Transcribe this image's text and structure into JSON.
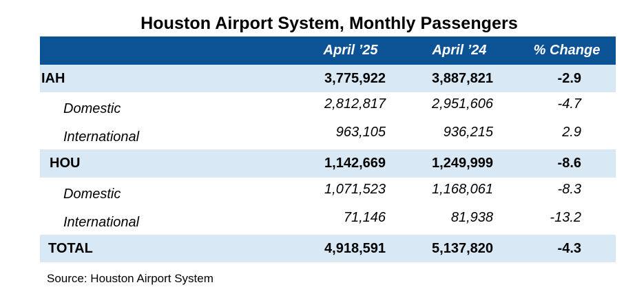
{
  "chart_data": {
    "type": "table",
    "title": "Houston Airport System, Monthly Passengers",
    "columns": [
      "",
      "April ’25",
      "April ’24",
      "% Change"
    ],
    "rows": [
      {
        "label": "IAH",
        "kind": "group",
        "april_25": "3,775,922",
        "april_24": "3,887,821",
        "pct_change": "-2.9"
      },
      {
        "label": "Domestic",
        "kind": "sub",
        "april_25": "2,812,817",
        "april_24": "2,951,606",
        "pct_change": "-4.7"
      },
      {
        "label": "International",
        "kind": "sub",
        "april_25": "963,105",
        "april_24": "936,215",
        "pct_change": "2.9"
      },
      {
        "label": "HOU",
        "kind": "group",
        "april_25": "1,142,669",
        "april_24": "1,249,999",
        "pct_change": "-8.6"
      },
      {
        "label": "Domestic",
        "kind": "sub",
        "april_25": "1,071,523",
        "april_24": "1,168,061",
        "pct_change": "-8.3"
      },
      {
        "label": "International",
        "kind": "sub",
        "april_25": "71,146",
        "april_24": "81,938",
        "pct_change": "-13.2"
      },
      {
        "label": "TOTAL",
        "kind": "total",
        "april_25": "4,918,591",
        "april_24": "5,137,820",
        "pct_change": "-4.3"
      }
    ],
    "source": "Source: Houston Airport System"
  },
  "colors": {
    "header_background": "#0b5394",
    "header_text": "#ffffff",
    "band_background": "#d8e8f4"
  }
}
